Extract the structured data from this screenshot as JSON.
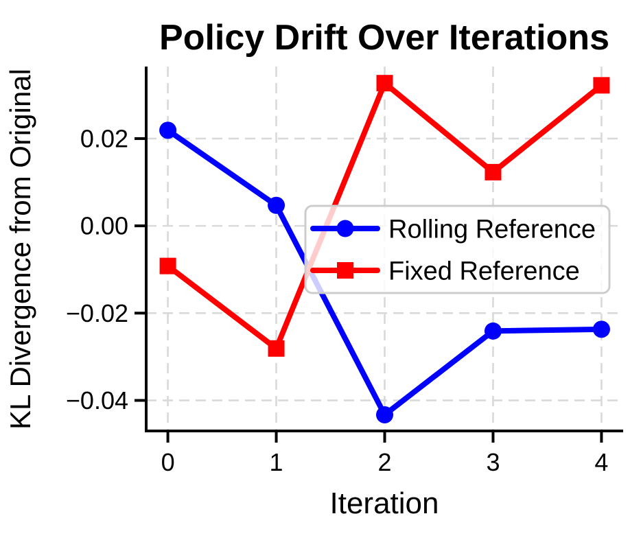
{
  "chart_data": {
    "type": "line",
    "title": "Policy Drift Over Iterations",
    "xlabel": "Iteration",
    "ylabel": "KL Divergence from Original",
    "x": [
      0,
      1,
      2,
      3,
      4
    ],
    "series": [
      {
        "name": "Rolling Reference",
        "color": "#0000ff",
        "marker": "circle",
        "values": [
          0.0219,
          0.0047,
          -0.0433,
          -0.0241,
          -0.0237
        ]
      },
      {
        "name": "Fixed Reference",
        "color": "#ff0000",
        "marker": "square",
        "values": [
          -0.0092,
          -0.0281,
          0.0327,
          0.0123,
          0.0322
        ]
      }
    ],
    "xlim": [
      -0.2,
      4.2
    ],
    "ylim": [
      -0.047,
      0.0365
    ],
    "xticks": {
      "values": [
        0,
        1,
        2,
        3,
        4
      ],
      "labels": [
        "0",
        "1",
        "2",
        "3",
        "4"
      ]
    },
    "yticks": {
      "values": [
        0.02,
        0.0,
        -0.02,
        -0.04
      ],
      "labels": [
        "0.02",
        "0.00",
        "−0.02",
        "−0.04"
      ]
    },
    "grid": true,
    "legend": {
      "visible": true,
      "position": "center right",
      "entries": [
        "Rolling Reference",
        "Fixed Reference"
      ]
    },
    "style": {
      "grid_color": "#d9d9d9",
      "spine_color": "#000000",
      "text_color": "#000000",
      "legend_border_color": "#cccccc",
      "legend_background": "#ffffff"
    }
  }
}
